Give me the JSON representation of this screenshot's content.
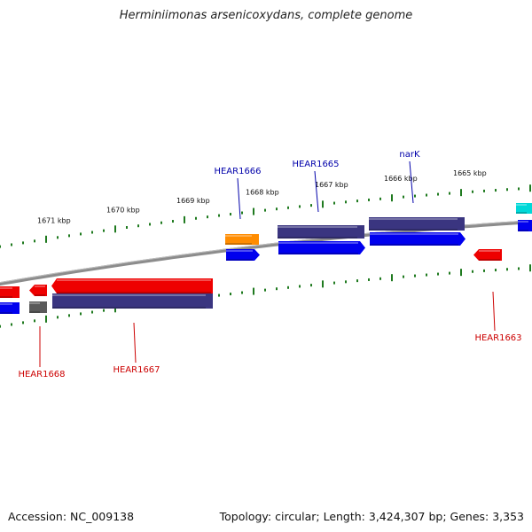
{
  "title": "Herminiimonas arsenicoxydans, complete genome",
  "footer": {
    "accession": "Accession: NC_009138",
    "topology": "Topology: circular; Length: 3,424,307 bp; Genes: 3,353"
  },
  "colors": {
    "backbone": "#8c8c8c",
    "tick": "#1f7a1f",
    "cds_dark": "#0000ee",
    "gene_navy": "#3a3580",
    "gene_red": "#ee0000",
    "gene_gray": "#5a5a5a",
    "gene_orange": "#ff8c00",
    "gene_cyan": "#00d8d8",
    "label_blue": "#0000aa",
    "label_red": "#cc0000"
  },
  "scale_labels": [
    "1671 kbp",
    "1670 kbp",
    "1669 kbp",
    "1668 kbp",
    "1667 kbp",
    "1666 kbp",
    "1665 kbp"
  ],
  "gene_labels": [
    "HEAR1666",
    "HEAR1665",
    "narK",
    "HEAR1668",
    "HEAR1667",
    "HEAR1663"
  ]
}
